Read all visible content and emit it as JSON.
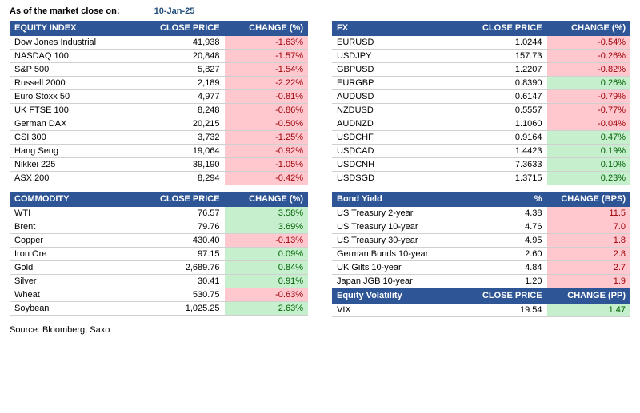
{
  "header": {
    "label": "As of the market close on:",
    "date": "10-Jan-25"
  },
  "source": "Source: Bloomberg, Saxo",
  "colors": {
    "header_bg": "#2e5596",
    "header_fg": "#ffffff",
    "pos_bg": "#c6efce",
    "pos_fg": "#006100",
    "neg_bg": "#ffc7ce",
    "neg_fg": "#9c0006",
    "row_border": "#d0d0d0"
  },
  "tables": {
    "equity": {
      "title": "EQUITY INDEX",
      "col_price": "CLOSE PRICE",
      "col_change": "CHANGE (%)",
      "rows": [
        {
          "name": "Dow Jones Industrial",
          "price": "41,938",
          "change": "-1.63%",
          "dir": "neg"
        },
        {
          "name": "NASDAQ 100",
          "price": "20,848",
          "change": "-1.57%",
          "dir": "neg"
        },
        {
          "name": "S&P 500",
          "price": "5,827",
          "change": "-1.54%",
          "dir": "neg"
        },
        {
          "name": "Russell 2000",
          "price": "2,189",
          "change": "-2.22%",
          "dir": "neg"
        },
        {
          "name": "Euro Stoxx 50",
          "price": "4,977",
          "change": "-0.81%",
          "dir": "neg"
        },
        {
          "name": "UK FTSE 100",
          "price": "8,248",
          "change": "-0.86%",
          "dir": "neg"
        },
        {
          "name": "German DAX",
          "price": "20,215",
          "change": "-0.50%",
          "dir": "neg"
        },
        {
          "name": "CSI 300",
          "price": "3,732",
          "change": "-1.25%",
          "dir": "neg"
        },
        {
          "name": "Hang Seng",
          "price": "19,064",
          "change": "-0.92%",
          "dir": "neg"
        },
        {
          "name": "Nikkei 225",
          "price": "39,190",
          "change": "-1.05%",
          "dir": "neg"
        },
        {
          "name": "ASX 200",
          "price": "8,294",
          "change": "-0.42%",
          "dir": "neg"
        }
      ]
    },
    "commodity": {
      "title": "COMMODITY",
      "col_price": "CLOSE PRICE",
      "col_change": "CHANGE (%)",
      "rows": [
        {
          "name": "WTI",
          "price": "76.57",
          "change": "3.58%",
          "dir": "pos"
        },
        {
          "name": "Brent",
          "price": "79.76",
          "change": "3.69%",
          "dir": "pos"
        },
        {
          "name": "Copper",
          "price": "430.40",
          "change": "-0.13%",
          "dir": "neg"
        },
        {
          "name": "Iron Ore",
          "price": "97.15",
          "change": "0.09%",
          "dir": "pos"
        },
        {
          "name": "Gold",
          "price": "2,689.76",
          "change": "0.84%",
          "dir": "pos"
        },
        {
          "name": "Silver",
          "price": "30.41",
          "change": "0.91%",
          "dir": "pos"
        },
        {
          "name": "Wheat",
          "price": "530.75",
          "change": "-0.63%",
          "dir": "neg"
        },
        {
          "name": "Soybean",
          "price": "1,025.25",
          "change": "2.63%",
          "dir": "pos"
        }
      ]
    },
    "fx": {
      "title": "FX",
      "col_price": "CLOSE PRICE",
      "col_change": "CHANGE (%)",
      "rows": [
        {
          "name": "EURUSD",
          "price": "1.0244",
          "change": "-0.54%",
          "dir": "neg"
        },
        {
          "name": "USDJPY",
          "price": "157.73",
          "change": "-0.26%",
          "dir": "neg"
        },
        {
          "name": "GBPUSD",
          "price": "1.2207",
          "change": "-0.82%",
          "dir": "neg"
        },
        {
          "name": "EURGBP",
          "price": "0.8390",
          "change": "0.26%",
          "dir": "pos"
        },
        {
          "name": "AUDUSD",
          "price": "0.6147",
          "change": "-0.79%",
          "dir": "neg"
        },
        {
          "name": "NZDUSD",
          "price": "0.5557",
          "change": "-0.77%",
          "dir": "neg"
        },
        {
          "name": "AUDNZD",
          "price": "1.1060",
          "change": "-0.04%",
          "dir": "neg"
        },
        {
          "name": "USDCHF",
          "price": "0.9164",
          "change": "0.47%",
          "dir": "pos"
        },
        {
          "name": "USDCAD",
          "price": "1.4423",
          "change": "0.19%",
          "dir": "pos"
        },
        {
          "name": "USDCNH",
          "price": "7.3633",
          "change": "0.10%",
          "dir": "pos"
        },
        {
          "name": "USDSGD",
          "price": "1.3715",
          "change": "0.23%",
          "dir": "pos"
        }
      ]
    },
    "bond": {
      "title": "Bond Yield",
      "col_price": "%",
      "col_change": "CHANGE (BPS)",
      "rows": [
        {
          "name": "US Treasury 2-year",
          "price": "4.38",
          "change": "11.5",
          "dir": "neg"
        },
        {
          "name": "US Treasury 10-year",
          "price": "4.76",
          "change": "7.0",
          "dir": "neg"
        },
        {
          "name": "US Treasury 30-year",
          "price": "4.95",
          "change": "1.8",
          "dir": "neg"
        },
        {
          "name": "German Bunds 10-year",
          "price": "2.60",
          "change": "2.8",
          "dir": "neg"
        },
        {
          "name": "UK Gilts 10-year",
          "price": "4.84",
          "change": "2.7",
          "dir": "neg"
        },
        {
          "name": "Japan JGB 10-year",
          "price": "1.20",
          "change": "1.9",
          "dir": "neg"
        }
      ]
    },
    "vol": {
      "title": "Equity Volatility",
      "col_price": "CLOSE PRICE",
      "col_change": "CHANGE (PP)",
      "rows": [
        {
          "name": "VIX",
          "price": "19.54",
          "change": "1.47",
          "dir": "pos"
        }
      ]
    }
  }
}
